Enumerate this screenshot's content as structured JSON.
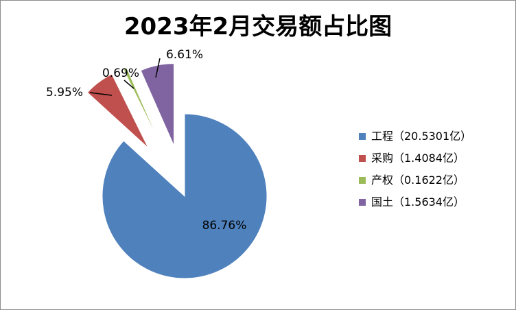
{
  "chart_data": {
    "type": "pie",
    "title": "2023年2月交易额占比图",
    "categories": [
      "工程",
      "采购",
      "产权",
      "国土"
    ],
    "legend_labels": [
      "工程（20.5301亿）",
      "采购（1.4084亿）",
      "产权（0.1622亿）",
      "国土（1.5634亿）"
    ],
    "values": [
      20.5301,
      1.4084,
      0.1622,
      1.5634
    ],
    "percent_labels": [
      "86.76%",
      "5.95%",
      "0.69%",
      "6.61%"
    ],
    "colors": [
      "#4f81bd",
      "#c0504d",
      "#9bbb59",
      "#8064a2"
    ],
    "exploded": true,
    "legend_position": "right"
  }
}
